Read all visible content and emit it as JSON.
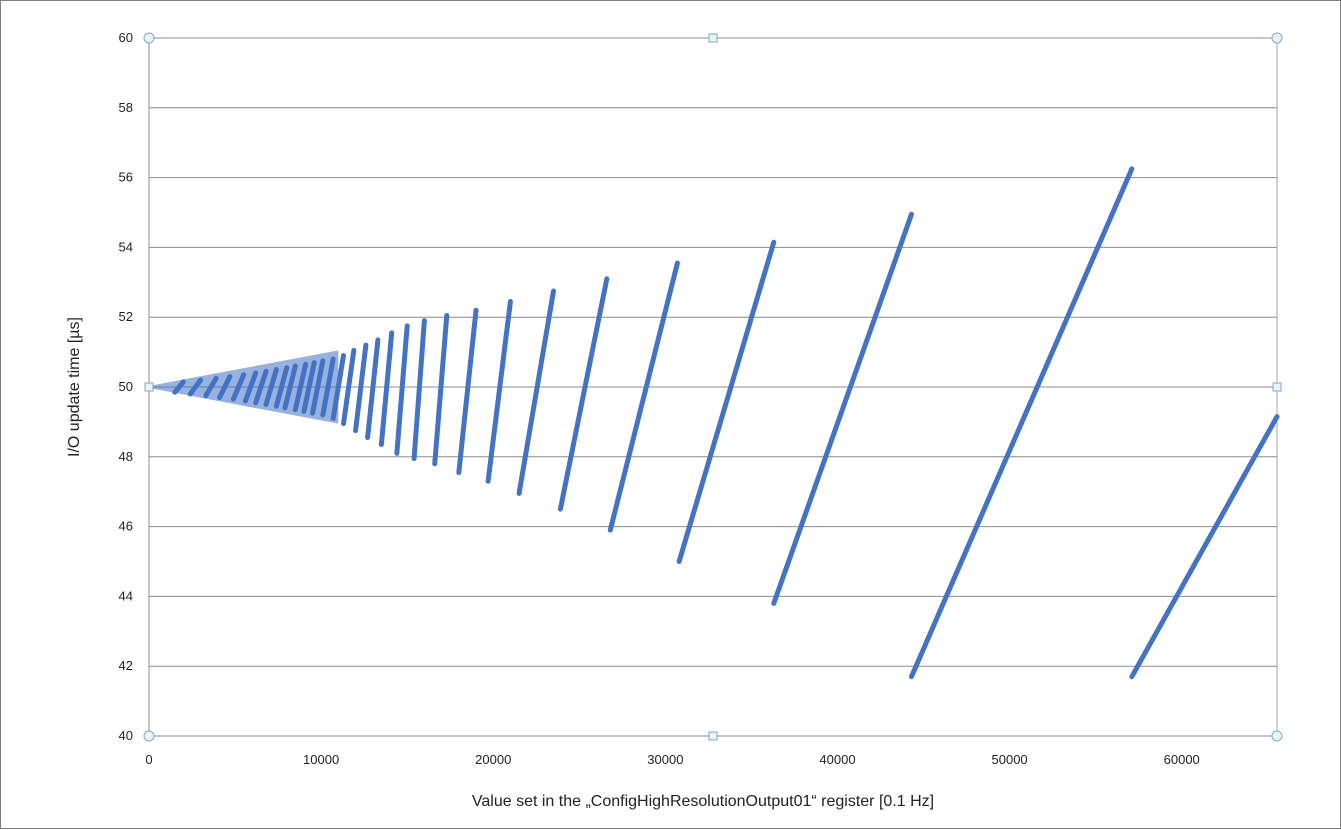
{
  "chart_data": {
    "type": "scatter",
    "title": "",
    "xlabel": "Value set in the „ConfigHighResolutionOutput01“ register [0.1 Hz]",
    "ylabel": "I/O update time [µs]",
    "xlim": [
      0,
      65535
    ],
    "ylim": [
      40,
      60
    ],
    "x_ticks": [
      "0",
      "10000",
      "20000",
      "30000",
      "40000",
      "50000",
      "60000"
    ],
    "y_ticks": [
      "40",
      "42",
      "44",
      "46",
      "48",
      "50",
      "52",
      "54",
      "56",
      "58",
      "60"
    ],
    "grid": "horizontal",
    "legend": "none",
    "marker_color": "#4472c4",
    "series": [
      {
        "segments": [
          {
            "x": [
              1500,
              2000
            ],
            "y": [
              49.85,
              50.15
            ]
          },
          {
            "x": [
              2400,
              3000
            ],
            "y": [
              49.8,
              50.2
            ]
          },
          {
            "x": [
              3300,
              3900
            ],
            "y": [
              49.75,
              50.25
            ]
          },
          {
            "x": [
              4100,
              4700
            ],
            "y": [
              49.7,
              50.3
            ]
          },
          {
            "x": [
              4900,
              5500
            ],
            "y": [
              49.65,
              50.35
            ]
          },
          {
            "x": [
              5600,
              6200
            ],
            "y": [
              49.6,
              50.4
            ]
          },
          {
            "x": [
              6200,
              6800
            ],
            "y": [
              49.55,
              50.45
            ]
          },
          {
            "x": [
              6800,
              7400
            ],
            "y": [
              49.5,
              50.5
            ]
          },
          {
            "x": [
              7400,
              8000
            ],
            "y": [
              49.45,
              50.55
            ]
          },
          {
            "x": [
              7900,
              8500
            ],
            "y": [
              49.4,
              50.6
            ]
          },
          {
            "x": [
              8500,
              9100
            ],
            "y": [
              49.35,
              50.65
            ]
          },
          {
            "x": [
              9000,
              9600
            ],
            "y": [
              49.3,
              50.7
            ]
          },
          {
            "x": [
              9500,
              10100
            ],
            "y": [
              49.25,
              50.75
            ]
          },
          {
            "x": [
              10100,
              10700
            ],
            "y": [
              49.2,
              50.8
            ]
          },
          {
            "x": [
              10700,
              11300
            ],
            "y": [
              49.1,
              50.9
            ]
          },
          {
            "x": [
              11300,
              11900
            ],
            "y": [
              48.95,
              51.05
            ]
          },
          {
            "x": [
              12000,
              12600
            ],
            "y": [
              48.75,
              51.2
            ]
          },
          {
            "x": [
              12700,
              13300
            ],
            "y": [
              48.55,
              51.35
            ]
          },
          {
            "x": [
              13500,
              14100
            ],
            "y": [
              48.35,
              51.55
            ]
          },
          {
            "x": [
              14400,
              15000
            ],
            "y": [
              48.1,
              51.75
            ]
          },
          {
            "x": [
              15400,
              16000
            ],
            "y": [
              47.95,
              51.9
            ]
          },
          {
            "x": [
              16600,
              17300
            ],
            "y": [
              47.8,
              52.05
            ]
          },
          {
            "x": [
              18000,
              19000
            ],
            "y": [
              47.55,
              52.2
            ]
          },
          {
            "x": [
              19700,
              21000
            ],
            "y": [
              47.3,
              52.45
            ]
          },
          {
            "x": [
              21500,
              23500
            ],
            "y": [
              46.95,
              52.75
            ]
          },
          {
            "x": [
              23900,
              26600
            ],
            "y": [
              46.5,
              53.1
            ]
          },
          {
            "x": [
              26800,
              30700
            ],
            "y": [
              45.9,
              53.55
            ]
          },
          {
            "x": [
              30800,
              36300
            ],
            "y": [
              45.0,
              54.15
            ]
          },
          {
            "x": [
              36300,
              44300
            ],
            "y": [
              43.8,
              54.95
            ]
          },
          {
            "x": [
              44300,
              57100
            ],
            "y": [
              41.7,
              56.25
            ]
          },
          {
            "x": [
              57100,
              65535
            ],
            "y": [
              41.7,
              49.15
            ]
          }
        ]
      }
    ]
  }
}
